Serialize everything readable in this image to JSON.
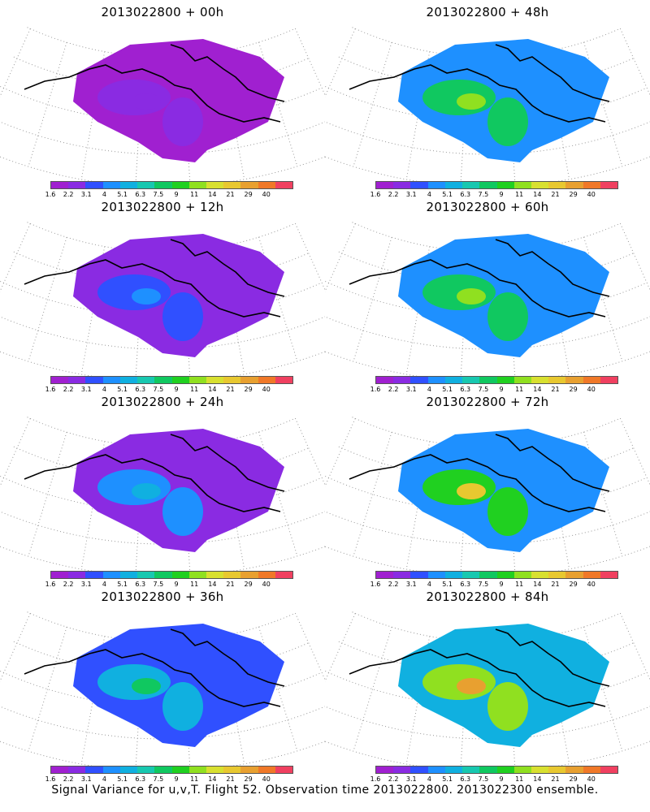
{
  "figure": {
    "caption": "Signal Variance for u,v,T. Flight 52. Observation time 2013022800. 2013022300 ensemble.",
    "panels": [
      {
        "title": "2013022800  +  00h",
        "intensity": 0.05
      },
      {
        "title": "2013022800  +  48h",
        "intensity": 0.55
      },
      {
        "title": "2013022800  +  12h",
        "intensity": 0.18
      },
      {
        "title": "2013022800  +  60h",
        "intensity": 0.6
      },
      {
        "title": "2013022800  +  24h",
        "intensity": 0.3
      },
      {
        "title": "2013022800  +  72h",
        "intensity": 0.68
      },
      {
        "title": "2013022800  +  36h",
        "intensity": 0.42
      },
      {
        "title": "2013022800  +  84h",
        "intensity": 0.75
      }
    ],
    "colorbar": {
      "labels": [
        "1.6",
        "2.2",
        "3.1",
        "4",
        "5.1",
        "6.3",
        "7.5",
        "9",
        "11",
        "14",
        "21",
        "29",
        "40"
      ],
      "colors": [
        "#a020d0",
        "#8a2be2",
        "#3050ff",
        "#1e90ff",
        "#10b0e0",
        "#18c8b0",
        "#10c860",
        "#20d020",
        "#90e020",
        "#d8e030",
        "#e8c830",
        "#e8a030",
        "#f07828",
        "#f04060",
        "#f01090"
      ]
    }
  }
}
